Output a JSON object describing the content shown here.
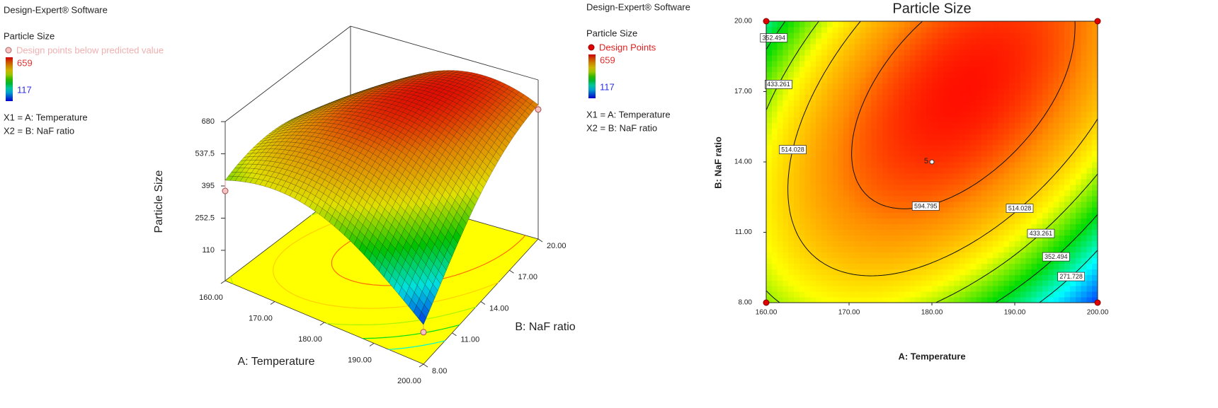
{
  "chart_data": [
    {
      "type": "surface",
      "software": "Design-Expert® Software",
      "response": "Particle Size",
      "legend_points": "Design points below predicted value",
      "color_range": {
        "max": 659,
        "min": 117
      },
      "factors": [
        "X1 = A: Temperature",
        "X2 = B: NaF ratio"
      ],
      "xlabel": "A: Temperature",
      "ylabel": "B: NaF ratio",
      "zlabel": "Particle Size",
      "xlim": [
        160,
        200
      ],
      "ylim": [
        8,
        20
      ],
      "zlim": [
        110,
        680
      ],
      "xticks": [
        {
          "value": 160,
          "label": "160.00"
        },
        {
          "value": 170,
          "label": "170.00"
        },
        {
          "value": 180,
          "label": "180.00"
        },
        {
          "value": 190,
          "label": "190.00"
        },
        {
          "value": 200,
          "label": "200.00"
        }
      ],
      "yticks": [
        {
          "value": 8,
          "label": "8.00"
        },
        {
          "value": 11,
          "label": "11.00"
        },
        {
          "value": 14,
          "label": "14.00"
        },
        {
          "value": 17,
          "label": "17.00"
        },
        {
          "value": 20,
          "label": "20.00"
        }
      ],
      "zticks": [
        110,
        252.5,
        395,
        537.5,
        680
      ],
      "grid": {
        "x": [
          160,
          170,
          180,
          190,
          200
        ],
        "y": [
          8,
          11,
          14,
          17,
          20
        ],
        "z": [
          [
            420,
            471,
            437,
            319,
            150
          ],
          [
            473,
            559,
            561,
            479,
            313
          ],
          [
            470,
            592,
            630,
            584,
            454
          ],
          [
            413,
            570,
            644,
            634,
            540
          ],
          [
            300,
            494,
            603,
            629,
            570
          ]
        ]
      },
      "design_points": {
        "x": [
          160,
          200,
          200
        ],
        "y": [
          8,
          8,
          20
        ],
        "z": [
          373,
          117,
          549
        ]
      }
    },
    {
      "type": "contour",
      "title": "Particle Size",
      "software": "Design-Expert® Software",
      "response": "Particle Size",
      "legend_points": "Design Points",
      "color_range": {
        "max": 659,
        "min": 117
      },
      "factors": [
        "X1 = A: Temperature",
        "X2 = B: NaF ratio"
      ],
      "xlabel": "A: Temperature",
      "ylabel": "B: NaF ratio",
      "xlim": [
        160,
        200
      ],
      "ylim": [
        8,
        20
      ],
      "xticks": [
        {
          "value": 160,
          "label": "160.00"
        },
        {
          "value": 170,
          "label": "170.00"
        },
        {
          "value": 180,
          "label": "180.00"
        },
        {
          "value": 190,
          "label": "190.00"
        },
        {
          "value": 200,
          "label": "200.00"
        }
      ],
      "yticks": [
        {
          "value": 8,
          "label": "8.00"
        },
        {
          "value": 11,
          "label": "11.00"
        },
        {
          "value": 14,
          "label": "14.00"
        },
        {
          "value": 17,
          "label": "17.00"
        },
        {
          "value": 20,
          "label": "20.00"
        }
      ],
      "levels": [
        271.728,
        352.494,
        433.261,
        514.028,
        594.795
      ],
      "grid": {
        "x": [
          160,
          170,
          180,
          190,
          200
        ],
        "y": [
          8,
          11,
          14,
          17,
          20
        ],
        "z": [
          [
            420,
            471,
            437,
            319,
            150
          ],
          [
            473,
            559,
            561,
            479,
            313
          ],
          [
            470,
            592,
            630,
            584,
            454
          ],
          [
            413,
            570,
            644,
            634,
            540
          ],
          [
            300,
            494,
            603,
            629,
            570
          ]
        ]
      },
      "design_points": {
        "x": [
          160,
          200,
          160,
          200
        ],
        "y": [
          8,
          8,
          20,
          20
        ]
      },
      "center_point": {
        "x": 180,
        "y": 14,
        "label": "5"
      }
    }
  ]
}
